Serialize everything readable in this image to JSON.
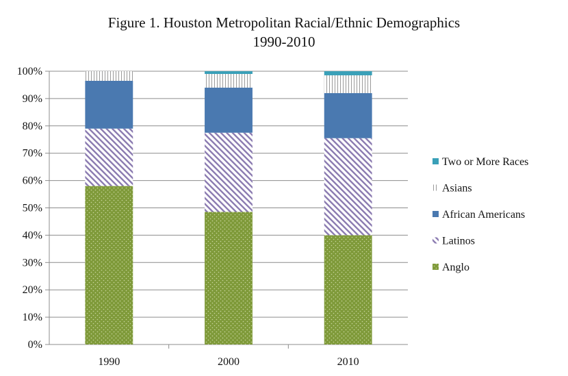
{
  "chart_data": {
    "type": "bar",
    "stacked": true,
    "title": "Figure 1. Houston Metropolitan Racial/Ethnic Demographics",
    "subtitle": "1990-2010",
    "xlabel": "",
    "ylabel": "",
    "ylim": [
      0,
      100
    ],
    "y_ticks": [
      "0%",
      "10%",
      "20%",
      "30%",
      "40%",
      "50%",
      "60%",
      "70%",
      "80%",
      "90%",
      "100%"
    ],
    "categories": [
      "1990",
      "2000",
      "2010"
    ],
    "series": [
      {
        "name": "Anglo",
        "values": [
          58,
          48.5,
          40
        ],
        "color": "#7f9a3a",
        "pattern": "dots"
      },
      {
        "name": "Latinos",
        "values": [
          21,
          29,
          35.5
        ],
        "color": "#8a7ab0",
        "pattern": "diagonal"
      },
      {
        "name": "African Americans",
        "values": [
          17.5,
          16.5,
          16.5
        ],
        "color": "#4a79b0",
        "pattern": "solid"
      },
      {
        "name": "Asians",
        "values": [
          3.5,
          5,
          6.5
        ],
        "color": "#999999",
        "pattern": "vertical"
      },
      {
        "name": "Two or More Races",
        "values": [
          0,
          1,
          1.5
        ],
        "color": "#3aa0b8",
        "pattern": "solid"
      }
    ],
    "legend_position": "right",
    "grid": true
  }
}
